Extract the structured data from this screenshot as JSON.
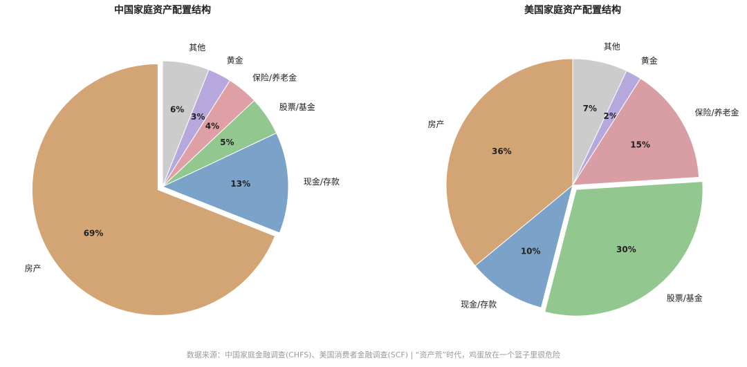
{
  "chart_data": [
    {
      "type": "pie",
      "title": "中国家庭资产配置结构",
      "categories": [
        "其他",
        "黄金",
        "保险/养老金",
        "股票/基金",
        "现金/存款",
        "房产"
      ],
      "values": [
        6,
        3,
        4,
        5,
        13,
        69
      ],
      "value_labels": [
        "6%",
        "3%",
        "4%",
        "5%",
        "13%",
        "69%"
      ],
      "colors": [
        "#cccccc",
        "#b6a8dc",
        "#dea0a4",
        "#93c790",
        "#7ba3c9",
        "#d4a574"
      ],
      "explode": 5
    },
    {
      "type": "pie",
      "title": "美国家庭资产配置结构",
      "categories": [
        "其他",
        "黄金",
        "保险/养老金",
        "股票/基金",
        "现金/存款",
        "房产"
      ],
      "values": [
        7,
        2,
        15,
        30,
        10,
        36
      ],
      "value_labels": [
        "7%",
        "2%",
        "15%",
        "30%",
        "10%",
        "36%"
      ],
      "colors": [
        "#cccccc",
        "#b6a8dc",
        "#d99ea4",
        "#93c790",
        "#7ba3c9",
        "#d4a574"
      ],
      "explode": 3
    }
  ],
  "source": "数据来源：中国家庭金融调查(CHFS)、美国消费者金融调查(SCF) | “资产荒”时代，鸡蛋放在一个篮子里很危险"
}
